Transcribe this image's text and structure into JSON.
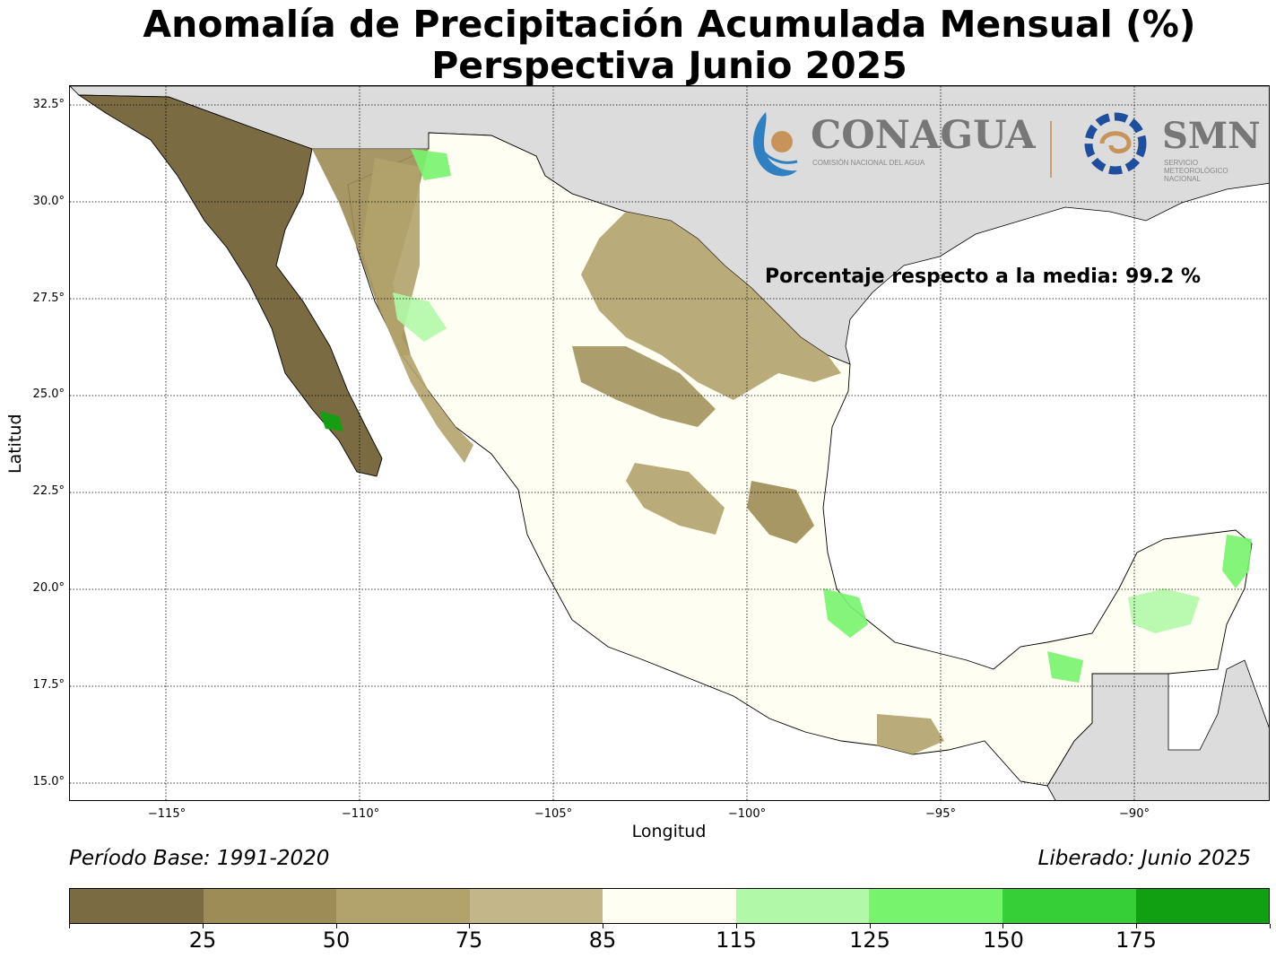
{
  "title": {
    "line1": "Anomalía de Precipitación Acumulada Mensual (%)",
    "line2": "Perspectiva Junio 2025"
  },
  "axes": {
    "xlabel": "Longitud",
    "ylabel": "Latitud",
    "xticks": [
      "−115°",
      "−110°",
      "−105°",
      "−100°",
      "−95°",
      "−90°"
    ],
    "yticks": [
      "32.5°",
      "30.0°",
      "27.5°",
      "25.0°",
      "22.5°",
      "20.0°",
      "17.5°",
      "15.0°"
    ]
  },
  "annotation": {
    "mean_text": "Porcentaje respecto a la media: 99.2 %"
  },
  "footer": {
    "base_period": "Período Base: 1991-2020",
    "released": "Liberado: Junio 2025"
  },
  "logos": {
    "conagua": "CONAGUA",
    "conagua_sub": "COMISIÓN NACIONAL DEL AGUA",
    "smn": "SMN",
    "smn_sub1": "SERVICIO",
    "smn_sub2": "METEOROLÓGICO",
    "smn_sub3": "NACIONAL"
  },
  "colorbar": {
    "labels": [
      "25",
      "50",
      "75",
      "85",
      "115",
      "125",
      "150",
      "175"
    ],
    "colors": [
      "#7a6b42",
      "#9d8c55",
      "#b2a36d",
      "#c3b78a",
      "#fefef2",
      "#b1f8a8",
      "#78f36e",
      "#36cf38",
      "#11a012"
    ]
  },
  "map": {
    "land_color": "#fefef2",
    "foreign_land_color": "#dcdcdc",
    "water_color": "#ffffff"
  }
}
